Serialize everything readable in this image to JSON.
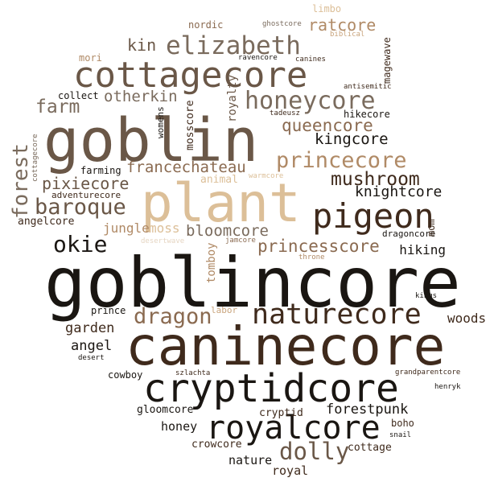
{
  "colors": {
    "black": "#1a1612",
    "darkbrown": "#3f2a1c",
    "brown": "#6a5747",
    "midbrown": "#8a6a50",
    "tan": "#b08a66",
    "lightwood": "#c9a47c",
    "sand": "#dcbf98",
    "pale": "#e6d6c3",
    "greybrown": "#7a6b5d"
  },
  "words": [
    {
      "text": "goblincore"
    },
    {
      "text": "caninecore"
    },
    {
      "text": "goblin"
    },
    {
      "text": "plant"
    },
    {
      "text": "cryptidcore"
    },
    {
      "text": "cottagecore"
    },
    {
      "text": "pigeon"
    },
    {
      "text": "royalcore"
    },
    {
      "text": "naturecore"
    },
    {
      "text": "elizabeth"
    },
    {
      "text": "honeycore"
    },
    {
      "text": "princecore"
    },
    {
      "text": "queencore"
    },
    {
      "text": "mushroom"
    },
    {
      "text": "baroque"
    },
    {
      "text": "dolly"
    },
    {
      "text": "dragon"
    },
    {
      "text": "princesscore"
    },
    {
      "text": "okie"
    },
    {
      "text": "forest"
    },
    {
      "text": "francechateau"
    },
    {
      "text": "pixiecore"
    },
    {
      "text": "bloomcore"
    },
    {
      "text": "knightcore"
    },
    {
      "text": "kingcore"
    },
    {
      "text": "farm"
    },
    {
      "text": "otherkin"
    },
    {
      "text": "ratcore"
    },
    {
      "text": "kin"
    },
    {
      "text": "hiking"
    },
    {
      "text": "jungle"
    },
    {
      "text": "moss"
    },
    {
      "text": "woods"
    },
    {
      "text": "garden"
    },
    {
      "text": "angel"
    },
    {
      "text": "forestpunk"
    },
    {
      "text": "honey"
    },
    {
      "text": "nature"
    },
    {
      "text": "royal"
    },
    {
      "text": "cottage"
    },
    {
      "text": "crowcore"
    },
    {
      "text": "cryptid"
    },
    {
      "text": "gloomcore"
    },
    {
      "text": "cowboy"
    },
    {
      "text": "angelcore"
    },
    {
      "text": "adventurecore"
    },
    {
      "text": "farming"
    },
    {
      "text": "collect"
    },
    {
      "text": "mori"
    },
    {
      "text": "nordic"
    },
    {
      "text": "limbo"
    },
    {
      "text": "ghostcore"
    },
    {
      "text": "biblical"
    },
    {
      "text": "ravencore"
    },
    {
      "text": "canines"
    },
    {
      "text": "magewave"
    },
    {
      "text": "antisemitic"
    },
    {
      "text": "hikecore"
    },
    {
      "text": "tadeusz"
    },
    {
      "text": "royalty"
    },
    {
      "text": "mosscore"
    },
    {
      "text": "womens"
    },
    {
      "text": "warmcore"
    },
    {
      "text": "animal"
    },
    {
      "text": "tomboy"
    },
    {
      "text": "jamcore"
    },
    {
      "text": "desertwave"
    },
    {
      "text": "dragoncore"
    },
    {
      "text": "throne"
    },
    {
      "text": "mom"
    },
    {
      "text": "prince"
    },
    {
      "text": "labor"
    },
    {
      "text": "kings"
    },
    {
      "text": "desert"
    },
    {
      "text": "szlachta"
    },
    {
      "text": "grandparentcore"
    },
    {
      "text": "henryk"
    },
    {
      "text": "boho"
    },
    {
      "text": "snail"
    },
    {
      "text": "cottagecore"
    }
  ]
}
